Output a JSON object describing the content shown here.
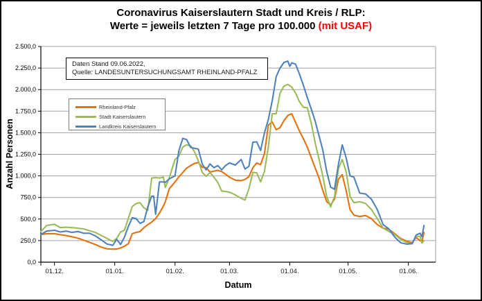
{
  "title": {
    "line1": "Coronavirus Kaiserslautern Stadt und Kreis / RLP:",
    "line2_black": "Werte = jeweils letzten 7 Tage pro 100.000 ",
    "line2_red": "(mit USAF)"
  },
  "info_box": {
    "line1": "Daten Stand 09.06.2022,",
    "line2": "Quelle: LANDESUNTERSUCHUNGSAMT RHEINLAND-PFALZ"
  },
  "colors": {
    "rlp_orange": "#E8700A",
    "stadt_green": "#9BBB59",
    "landkreis_blue": "#4F81BD",
    "grid": "#A0A0A0",
    "axis": "#000000",
    "title_red": "#FF0000"
  },
  "chart_data": {
    "type": "line",
    "title": "Coronavirus Kaiserslautern Stadt und Kreis / RLP: Werte = jeweils letzten 7 Tage pro 100.000 (mit USAF)",
    "xlabel": "Datum",
    "ylabel": "Anzahl Personen",
    "ylim": [
      0,
      2500
    ],
    "ytick_step": 250,
    "ytick_labels": [
      "0,0",
      "250,0",
      "500,0",
      "750,0",
      "1.000,0",
      "1.250,0",
      "1.500,0",
      "1.750,0",
      "2.000,0",
      "2.250,0",
      "2.500,0"
    ],
    "xtick_labels": [
      "01.12.",
      "01.01.",
      "01.02.",
      "01.03.",
      "01.04.",
      "01.05.",
      "01.06."
    ],
    "x_unit": "days from plot left edge (data traced from 24.11.2021 to 09.06.2022)",
    "xtick_days": [
      7,
      38,
      69,
      97,
      128,
      158,
      189
    ],
    "x_domain_days": [
      0,
      203
    ],
    "grid": true,
    "legend_position": "upper-left-inside",
    "series": [
      {
        "name": "Rheinland-Pfalz",
        "color": "#E8700A",
        "points": [
          [
            0,
            320
          ],
          [
            3,
            330
          ],
          [
            7,
            330
          ],
          [
            10,
            318
          ],
          [
            13,
            308
          ],
          [
            16,
            295
          ],
          [
            19,
            278
          ],
          [
            22,
            255
          ],
          [
            25,
            230
          ],
          [
            28,
            205
          ],
          [
            31,
            175
          ],
          [
            34,
            155
          ],
          [
            37,
            150
          ],
          [
            39,
            152
          ],
          [
            41,
            165
          ],
          [
            43,
            185
          ],
          [
            45,
            215
          ],
          [
            47,
            330
          ],
          [
            49,
            345
          ],
          [
            51,
            355
          ],
          [
            53,
            400
          ],
          [
            55,
            435
          ],
          [
            57,
            465
          ],
          [
            59,
            505
          ],
          [
            61,
            570
          ],
          [
            63,
            650
          ],
          [
            64,
            700
          ],
          [
            66,
            850
          ],
          [
            69,
            930
          ],
          [
            71,
            990
          ],
          [
            73,
            1040
          ],
          [
            75,
            1090
          ],
          [
            77,
            1120
          ],
          [
            79,
            1145
          ],
          [
            81,
            1155
          ],
          [
            83,
            1100
          ],
          [
            85,
            1095
          ],
          [
            87,
            1045
          ],
          [
            89,
            1055
          ],
          [
            91,
            1065
          ],
          [
            93,
            1050
          ],
          [
            95,
            1020
          ],
          [
            97,
            985
          ],
          [
            100,
            950
          ],
          [
            103,
            945
          ],
          [
            105,
            960
          ],
          [
            107,
            990
          ],
          [
            109,
            1095
          ],
          [
            111,
            1150
          ],
          [
            113,
            1130
          ],
          [
            115,
            1260
          ],
          [
            117,
            1590
          ],
          [
            119,
            1625
          ],
          [
            121,
            1535
          ],
          [
            123,
            1560
          ],
          [
            125,
            1640
          ],
          [
            127,
            1700
          ],
          [
            129,
            1720
          ],
          [
            131,
            1620
          ],
          [
            133,
            1520
          ],
          [
            135,
            1430
          ],
          [
            137,
            1335
          ],
          [
            139,
            1215
          ],
          [
            141,
            1095
          ],
          [
            143,
            980
          ],
          [
            145,
            830
          ],
          [
            147,
            700
          ],
          [
            149,
            665
          ],
          [
            151,
            730
          ],
          [
            153,
            960
          ],
          [
            155,
            1015
          ],
          [
            157,
            830
          ],
          [
            159,
            610
          ],
          [
            161,
            545
          ],
          [
            164,
            530
          ],
          [
            167,
            540
          ],
          [
            170,
            505
          ],
          [
            173,
            435
          ],
          [
            176,
            395
          ],
          [
            179,
            380
          ],
          [
            182,
            330
          ],
          [
            185,
            275
          ],
          [
            188,
            245
          ],
          [
            191,
            225
          ],
          [
            193,
            285
          ],
          [
            195,
            250
          ],
          [
            196,
            240
          ],
          [
            197,
            345
          ]
        ]
      },
      {
        "name": "Stadt Kaiserslautern",
        "color": "#9BBB59",
        "points": [
          [
            0,
            355
          ],
          [
            3,
            425
          ],
          [
            7,
            440
          ],
          [
            10,
            400
          ],
          [
            13,
            405
          ],
          [
            16,
            400
          ],
          [
            19,
            393
          ],
          [
            22,
            385
          ],
          [
            25,
            365
          ],
          [
            28,
            345
          ],
          [
            31,
            310
          ],
          [
            34,
            275
          ],
          [
            37,
            240
          ],
          [
            39,
            275
          ],
          [
            41,
            350
          ],
          [
            43,
            370
          ],
          [
            45,
            510
          ],
          [
            47,
            645
          ],
          [
            49,
            680
          ],
          [
            51,
            690
          ],
          [
            53,
            630
          ],
          [
            55,
            600
          ],
          [
            57,
            975
          ],
          [
            59,
            980
          ],
          [
            61,
            975
          ],
          [
            63,
            985
          ],
          [
            64,
            865
          ],
          [
            66,
            975
          ],
          [
            69,
            1190
          ],
          [
            71,
            1230
          ],
          [
            73,
            1335
          ],
          [
            75,
            1360
          ],
          [
            77,
            1350
          ],
          [
            79,
            1280
          ],
          [
            81,
            1175
          ],
          [
            83,
            1040
          ],
          [
            85,
            995
          ],
          [
            87,
            1040
          ],
          [
            89,
            985
          ],
          [
            91,
            925
          ],
          [
            93,
            825
          ],
          [
            95,
            820
          ],
          [
            97,
            810
          ],
          [
            100,
            780
          ],
          [
            103,
            740
          ],
          [
            105,
            720
          ],
          [
            107,
            850
          ],
          [
            109,
            1040
          ],
          [
            111,
            1035
          ],
          [
            113,
            930
          ],
          [
            115,
            1055
          ],
          [
            117,
            1335
          ],
          [
            119,
            1720
          ],
          [
            121,
            1720
          ],
          [
            123,
            1960
          ],
          [
            125,
            2040
          ],
          [
            127,
            2060
          ],
          [
            129,
            2030
          ],
          [
            131,
            1960
          ],
          [
            133,
            1860
          ],
          [
            135,
            1795
          ],
          [
            137,
            1790
          ],
          [
            139,
            1615
          ],
          [
            141,
            1390
          ],
          [
            143,
            1200
          ],
          [
            145,
            1000
          ],
          [
            147,
            760
          ],
          [
            149,
            640
          ],
          [
            151,
            760
          ],
          [
            153,
            1080
          ],
          [
            155,
            1190
          ],
          [
            157,
            1050
          ],
          [
            159,
            760
          ],
          [
            161,
            690
          ],
          [
            164,
            700
          ],
          [
            167,
            680
          ],
          [
            170,
            610
          ],
          [
            173,
            505
          ],
          [
            176,
            395
          ],
          [
            179,
            355
          ],
          [
            182,
            320
          ],
          [
            185,
            265
          ],
          [
            188,
            230
          ],
          [
            191,
            215
          ],
          [
            193,
            300
          ],
          [
            195,
            300
          ],
          [
            196,
            220
          ],
          [
            197,
            250
          ]
        ]
      },
      {
        "name": "Landkreis Kaiserslautern",
        "color": "#4F81BD",
        "points": [
          [
            0,
            320
          ],
          [
            3,
            360
          ],
          [
            7,
            370
          ],
          [
            10,
            350
          ],
          [
            13,
            360
          ],
          [
            16,
            345
          ],
          [
            19,
            355
          ],
          [
            22,
            335
          ],
          [
            25,
            335
          ],
          [
            28,
            305
          ],
          [
            31,
            260
          ],
          [
            34,
            210
          ],
          [
            37,
            195
          ],
          [
            39,
            265
          ],
          [
            41,
            205
          ],
          [
            43,
            290
          ],
          [
            45,
            415
          ],
          [
            47,
            515
          ],
          [
            49,
            505
          ],
          [
            51,
            450
          ],
          [
            53,
            470
          ],
          [
            55,
            640
          ],
          [
            57,
            765
          ],
          [
            58,
            765
          ],
          [
            59,
            555
          ],
          [
            61,
            930
          ],
          [
            63,
            930
          ],
          [
            64,
            925
          ],
          [
            66,
            965
          ],
          [
            69,
            1000
          ],
          [
            71,
            1295
          ],
          [
            73,
            1435
          ],
          [
            75,
            1420
          ],
          [
            77,
            1330
          ],
          [
            79,
            1320
          ],
          [
            81,
            1310
          ],
          [
            83,
            1135
          ],
          [
            85,
            1070
          ],
          [
            87,
            1140
          ],
          [
            89,
            1095
          ],
          [
            91,
            1120
          ],
          [
            93,
            1070
          ],
          [
            95,
            1120
          ],
          [
            97,
            1150
          ],
          [
            100,
            1125
          ],
          [
            103,
            1190
          ],
          [
            105,
            1080
          ],
          [
            107,
            1110
          ],
          [
            109,
            1390
          ],
          [
            111,
            1395
          ],
          [
            113,
            1295
          ],
          [
            115,
            1500
          ],
          [
            117,
            1655
          ],
          [
            119,
            1870
          ],
          [
            121,
            2150
          ],
          [
            123,
            2250
          ],
          [
            125,
            2315
          ],
          [
            127,
            2330
          ],
          [
            128,
            2270
          ],
          [
            129,
            2310
          ],
          [
            131,
            2295
          ],
          [
            133,
            2180
          ],
          [
            135,
            2050
          ],
          [
            137,
            1910
          ],
          [
            139,
            1780
          ],
          [
            141,
            1640
          ],
          [
            143,
            1470
          ],
          [
            145,
            1300
          ],
          [
            147,
            1050
          ],
          [
            149,
            870
          ],
          [
            151,
            845
          ],
          [
            153,
            1130
          ],
          [
            155,
            1360
          ],
          [
            157,
            1210
          ],
          [
            159,
            1000
          ],
          [
            161,
            985
          ],
          [
            164,
            800
          ],
          [
            167,
            790
          ],
          [
            170,
            730
          ],
          [
            173,
            610
          ],
          [
            176,
            435
          ],
          [
            179,
            385
          ],
          [
            182,
            290
          ],
          [
            185,
            225
          ],
          [
            188,
            210
          ],
          [
            191,
            215
          ],
          [
            193,
            315
          ],
          [
            195,
            335
          ],
          [
            196,
            295
          ],
          [
            197,
            425
          ]
        ]
      }
    ]
  }
}
